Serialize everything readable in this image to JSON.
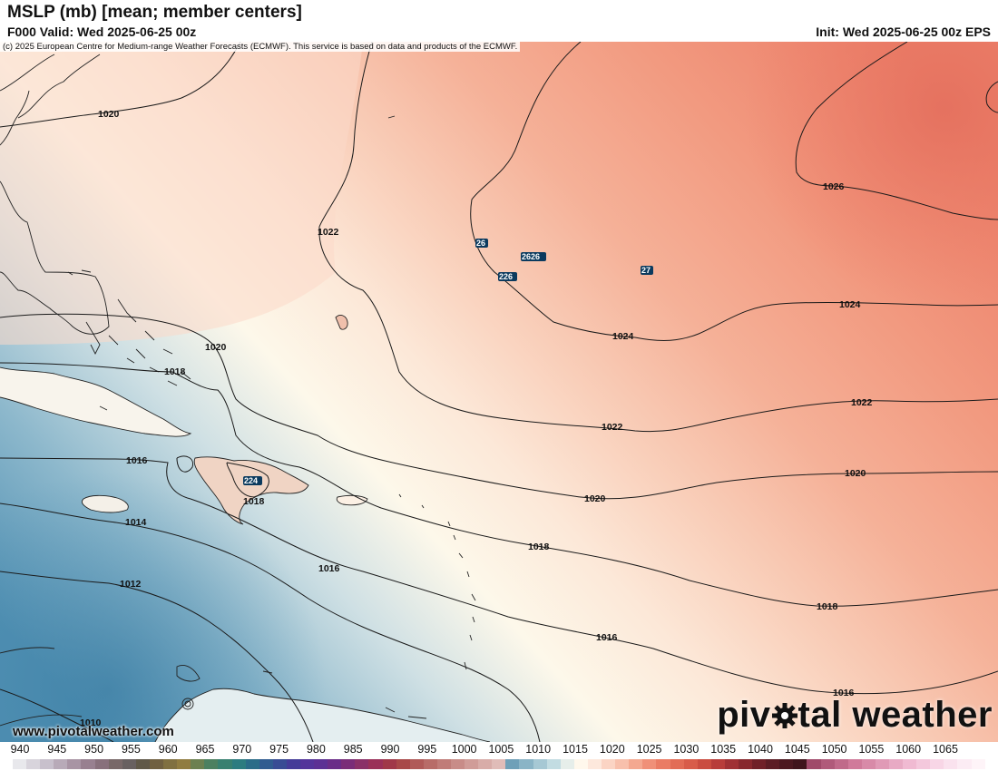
{
  "header": {
    "title": "MSLP (mb) [mean; member centers]",
    "valid": "F000 Valid: Wed 2025-06-25 00z",
    "init": "Init: Wed 2025-06-25 00z EPS"
  },
  "copyright": "(c) 2025 European Centre for Medium-range Weather Forecasts (ECMWF). This service is based on data and products of the ECMWF.",
  "website": "www.pivotalweather.com",
  "brand": {
    "text_before": "piv",
    "text_after": "tal weather",
    "icon": "gear-icon"
  },
  "map": {
    "isobar_labels": [
      {
        "text": "1020"
      },
      {
        "text": "1022"
      },
      {
        "text": "1020"
      },
      {
        "text": "1018"
      },
      {
        "text": "1016"
      },
      {
        "text": "1018"
      },
      {
        "text": "1014"
      },
      {
        "text": "1012"
      },
      {
        "text": "1010"
      },
      {
        "text": "1016"
      },
      {
        "text": "1018"
      },
      {
        "text": "1020"
      },
      {
        "text": "1022"
      },
      {
        "text": "1024"
      },
      {
        "text": "1026"
      },
      {
        "text": "1024"
      },
      {
        "text": "1022"
      },
      {
        "text": "1020"
      },
      {
        "text": "1018"
      },
      {
        "text": "1016"
      },
      {
        "text": "1016"
      }
    ],
    "member_centers": [
      {
        "text": "26"
      },
      {
        "text": "2626"
      },
      {
        "text": "226"
      },
      {
        "text": "27"
      },
      {
        "text": "224"
      }
    ]
  },
  "colorbar": {
    "labels": [
      "940",
      "945",
      "950",
      "955",
      "960",
      "965",
      "970",
      "975",
      "980",
      "985",
      "990",
      "995",
      "1000",
      "1005",
      "1010",
      "1015",
      "1020",
      "1025",
      "1030",
      "1035",
      "1040",
      "1045",
      "1050",
      "1055",
      "1060",
      "1065"
    ],
    "colors": [
      "#e8e8ec",
      "#d8d4dc",
      "#c8c0cc",
      "#b8aab8",
      "#a894a4",
      "#988090",
      "#88707c",
      "#786868",
      "#686060",
      "#605848",
      "#706040",
      "#807040",
      "#907c40",
      "#6c8050",
      "#4c8060",
      "#388070",
      "#2c7c80",
      "#2a6c88",
      "#305c90",
      "#384c94",
      "#443c98",
      "#54349a",
      "#5c3094",
      "#6a2c88",
      "#7a2c78",
      "#8a3068",
      "#9a3058",
      "#a03848",
      "#a84848",
      "#b05a58",
      "#b86c68",
      "#c07c78",
      "#c88c88",
      "#d09c98",
      "#d8aca8",
      "#e0bcb8",
      "#6fa0b8",
      "#8ab4c6",
      "#a6c8d4",
      "#c2dce2",
      "#e6eeea",
      "#fff8ec",
      "#fde8dc",
      "#fbd4c4",
      "#f8c0ac",
      "#f4a890",
      "#f09078",
      "#ea7c64",
      "#e26c56",
      "#d85c4a",
      "#ca4c40",
      "#b83c3a",
      "#a03034",
      "#88282e",
      "#702028",
      "#5c1c24",
      "#4c1820",
      "#40141c",
      "#a04a6a",
      "#b05a7a",
      "#c06a8a",
      "#d07a9a",
      "#d88aa8",
      "#e09ab6",
      "#e8aac4",
      "#f0bad2",
      "#f4c8dc",
      "#f8d6e6",
      "#fae2ee",
      "#fcecf4",
      "#fef4f8"
    ]
  }
}
